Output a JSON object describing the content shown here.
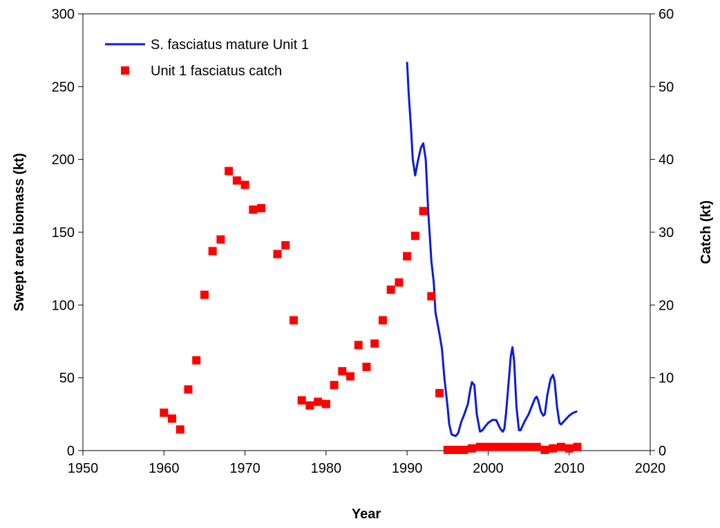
{
  "chart_data": {
    "type": "line",
    "xlabel": "Year",
    "ylabel": "Swept area biomass (kt)",
    "y2label": "Catch (kt)",
    "xlim": [
      1950,
      2020
    ],
    "xticks": [
      1950,
      1960,
      1970,
      1980,
      1990,
      2000,
      2010,
      2020
    ],
    "ylim": [
      0,
      300
    ],
    "yticks": [
      0,
      50,
      100,
      150,
      200,
      250,
      300
    ],
    "y2lim": [
      0,
      60
    ],
    "y2ticks": [
      0,
      10,
      20,
      30,
      40,
      50,
      60
    ],
    "legend": "upper left",
    "series": [
      {
        "name": "S. fasciatus mature Unit 1",
        "type": "line",
        "color": "#0a1adc",
        "x": [
          1990.0,
          1990.2,
          1990.5,
          1990.7,
          1991.0,
          1991.3,
          1991.7,
          1992.0,
          1992.3,
          1992.6,
          1993.0,
          1993.3,
          1993.5,
          1994.0,
          1994.3,
          1994.6,
          1995.0,
          1995.2,
          1995.5,
          1996.0,
          1996.3,
          1996.7,
          1997.0,
          1997.5,
          1997.8,
          1998.0,
          1998.3,
          1998.6,
          1999.0,
          1999.3,
          1999.7,
          2000.0,
          2000.5,
          2001.0,
          2001.5,
          2001.8,
          2002.0,
          2002.2,
          2002.5,
          2002.8,
          2003.0,
          2003.2,
          2003.5,
          2003.8,
          2004.0,
          2004.5,
          2005.0,
          2005.5,
          2005.8,
          2006.0,
          2006.2,
          2006.5,
          2006.8,
          2007.0,
          2007.3,
          2007.7,
          2008.0,
          2008.2,
          2008.5,
          2008.8,
          2009.0,
          2009.5,
          2010.0,
          2010.5,
          2011.0
        ],
        "values": [
          267,
          245,
          220,
          200,
          189,
          198,
          208,
          211,
          200,
          165,
          130,
          115,
          95,
          80,
          70,
          50,
          30,
          18,
          11,
          10,
          12,
          20,
          24,
          32,
          42,
          47,
          45,
          25,
          13,
          14,
          17,
          19,
          21,
          21,
          15,
          13,
          15,
          25,
          45,
          65,
          71,
          62,
          30,
          14,
          14,
          20,
          25,
          32,
          36,
          37,
          34,
          27,
          24,
          25,
          38,
          49,
          52,
          48,
          30,
          19,
          18,
          21,
          24,
          26,
          27
        ]
      },
      {
        "name": "Unit 1 fasciatus catch",
        "type": "scatter",
        "axis": "y2",
        "color": "#ff0000",
        "x": [
          1960,
          1961,
          1962,
          1963,
          1964,
          1965,
          1966,
          1967,
          1968,
          1969,
          1970,
          1971,
          1972,
          1974,
          1975,
          1976,
          1977,
          1978,
          1979,
          1980,
          1981,
          1982,
          1983,
          1984,
          1985,
          1986,
          1987,
          1988,
          1989,
          1990,
          1991,
          1992,
          1993,
          1994,
          1995,
          1996,
          1997,
          1998,
          1999,
          2000,
          2001,
          2002,
          2003,
          2004,
          2005,
          2006,
          2007,
          2008,
          2009,
          2010,
          2011
        ],
        "values": [
          5.2,
          4.4,
          2.9,
          8.4,
          12.4,
          21.4,
          27.4,
          29,
          38.4,
          37.1,
          36.5,
          33.1,
          33.3,
          27,
          28.2,
          17.9,
          6.9,
          6.2,
          6.7,
          6.4,
          9.0,
          10.9,
          10.2,
          14.5,
          11.5,
          14.7,
          17.9,
          22.1,
          23.1,
          26.7,
          29.5,
          32.9,
          21.2,
          7.9,
          0.1,
          0.1,
          0.1,
          0.3,
          0.5,
          0.5,
          0.5,
          0.5,
          0.5,
          0.5,
          0.5,
          0.5,
          0.1,
          0.3,
          0.5,
          0.3,
          0.5
        ]
      }
    ]
  }
}
